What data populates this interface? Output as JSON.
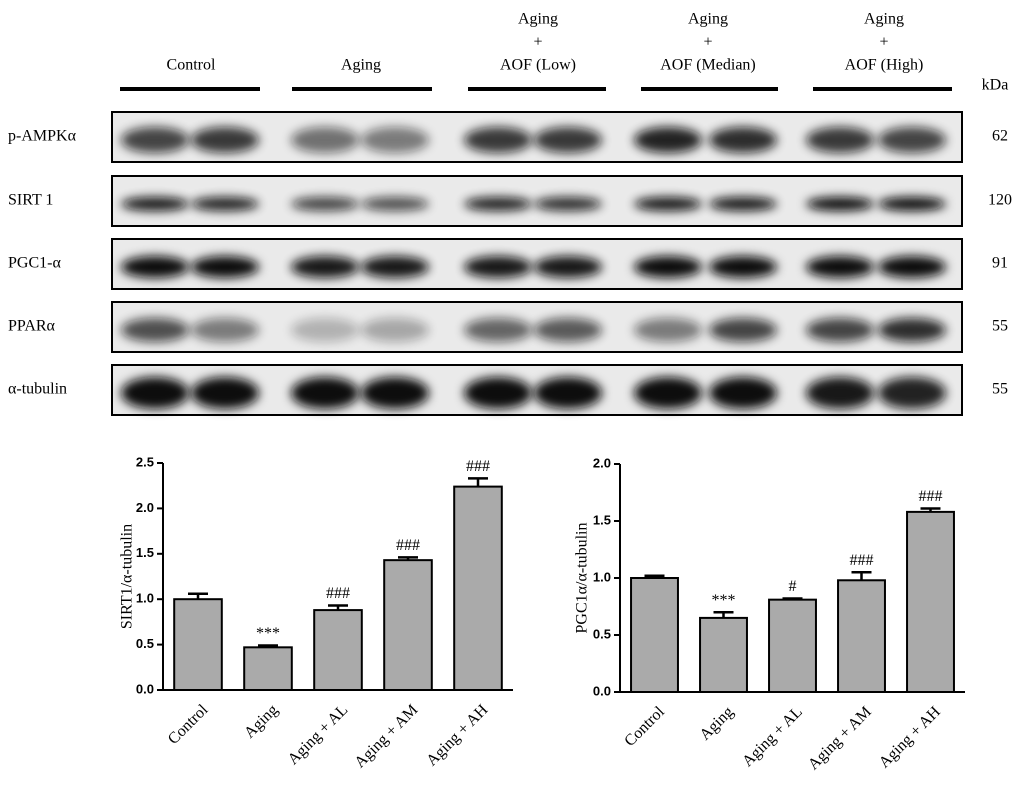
{
  "blot": {
    "groups": [
      {
        "lines": [
          "Control"
        ]
      },
      {
        "lines": [
          "Aging"
        ]
      },
      {
        "lines": [
          "Aging",
          "+",
          "AOF (Low)"
        ]
      },
      {
        "lines": [
          "Aging",
          "+",
          "AOF (Median)"
        ]
      },
      {
        "lines": [
          "Aging",
          "+",
          "AOF (High)"
        ]
      }
    ],
    "unit": "kDa",
    "rows": [
      {
        "label": "p-AMPKα",
        "kda": "62"
      },
      {
        "label": "SIRT 1",
        "kda": "120"
      },
      {
        "label": "PGC1-α",
        "kda": "91"
      },
      {
        "label": "PPARα",
        "kda": "55"
      },
      {
        "label": "α-tubulin",
        "kda": "55"
      }
    ]
  },
  "chart_data": [
    {
      "type": "bar",
      "ylabel": "SIRT1/α-tubulin",
      "categories": [
        "Control",
        "Aging",
        "Aging + AL",
        "Aging + AM",
        "Aging + AH"
      ],
      "values": [
        1.0,
        0.47,
        0.88,
        1.43,
        2.24
      ],
      "errors": [
        0.06,
        0.02,
        0.05,
        0.03,
        0.09
      ],
      "annotations": [
        null,
        "***",
        "###",
        "###",
        "###"
      ],
      "color": "#aaaaaa",
      "ylim": [
        0,
        2.5
      ],
      "yticks": [
        {
          "value": 0,
          "label": "0.0"
        },
        0.5,
        {
          "value": 1,
          "label": "1.0"
        },
        1.5,
        {
          "value": 2,
          "label": "2.0"
        },
        2.5
      ]
    },
    {
      "type": "bar",
      "ylabel": "PGC1α/α-tubulin",
      "categories": [
        "Control",
        "Aging",
        "Aging + AL",
        "Aging + AM",
        "Aging + AH"
      ],
      "values": [
        1.0,
        0.65,
        0.81,
        0.98,
        1.58
      ],
      "errors": [
        0.02,
        0.05,
        0.01,
        0.07,
        0.03
      ],
      "annotations": [
        null,
        "***",
        "#",
        "###",
        "###"
      ],
      "color": "#aaaaaa",
      "ylim": [
        0,
        2.0
      ],
      "yticks": [
        {
          "value": 0,
          "label": "0.0"
        },
        0.5,
        {
          "value": 1,
          "label": "1.0"
        },
        1.5,
        {
          "value": 2,
          "label": "2.0"
        }
      ]
    }
  ]
}
